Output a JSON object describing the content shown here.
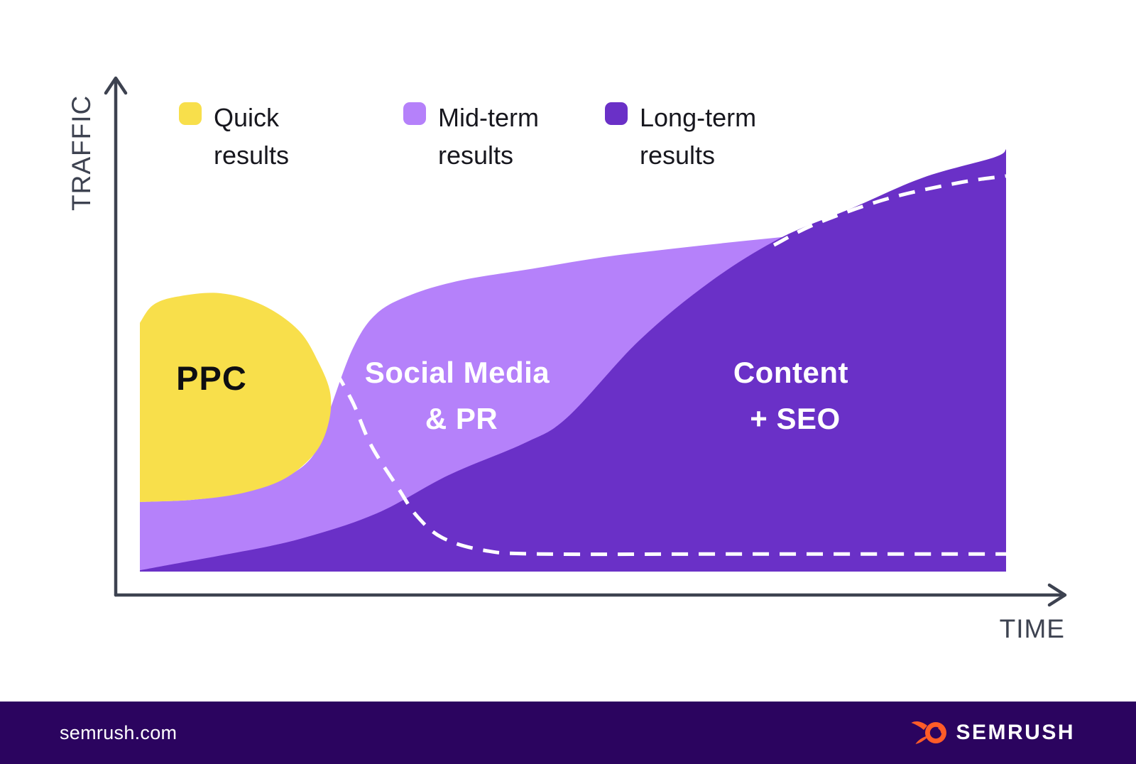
{
  "colors": {
    "axis": "#3d4250",
    "text_dark": "#17171e",
    "footer_bg": "#2b045f",
    "logo_orange": "#ff5c28",
    "white": "#ffffff"
  },
  "chart_data": {
    "type": "area",
    "title": "",
    "xlabel": "TIME",
    "ylabel": "TRAFFIC",
    "x_range": [
      0,
      100
    ],
    "y_range": [
      0,
      100
    ],
    "grid": false,
    "legend": {
      "position": "top",
      "items": [
        {
          "id": "quick-results",
          "label": "Quick results",
          "color": "#f8df4b"
        },
        {
          "id": "mid-term-results",
          "label": "Mid-term results",
          "color": "#b581fa"
        },
        {
          "id": "long-term-results",
          "label": "Long-term results",
          "color": "#6a30c7"
        }
      ]
    },
    "series": [
      {
        "id": "ppc",
        "name": "PPC",
        "label": "PPC",
        "result_type": "Quick results",
        "color": "#f8df4b",
        "shape": "blob",
        "points": [
          [
            0,
            57.9
          ],
          [
            1.5,
            62
          ],
          [
            4.3,
            64
          ],
          [
            9.3,
            64.8
          ],
          [
            14.2,
            62
          ],
          [
            18.3,
            56.2
          ],
          [
            20.6,
            48.8
          ],
          [
            22,
            41.3
          ],
          [
            21.7,
            33.9
          ],
          [
            20.1,
            27.3
          ],
          [
            16.6,
            21.5
          ],
          [
            11.7,
            18.2
          ],
          [
            6,
            16.7
          ],
          [
            0,
            16.2
          ]
        ]
      },
      {
        "id": "social-media-pr",
        "name": "Social Media & PR",
        "label_lines": [
          "Social Media",
          "& PR"
        ],
        "result_type": "Mid-term results",
        "color": "#b581fa",
        "shape": "area",
        "points": [
          [
            0,
            16.2
          ],
          [
            6,
            16.7
          ],
          [
            11.7,
            18.3
          ],
          [
            16.6,
            21.7
          ],
          [
            20.1,
            27.3
          ],
          [
            22,
            38
          ],
          [
            24.6,
            52
          ],
          [
            27.3,
            60
          ],
          [
            31.4,
            64.5
          ],
          [
            37.1,
            67.8
          ],
          [
            45.3,
            70.5
          ],
          [
            53.5,
            73.2
          ],
          [
            61.7,
            75.2
          ],
          [
            69.9,
            77
          ],
          [
            78.1,
            78.6
          ],
          [
            86.3,
            79.7
          ],
          [
            100,
            80.9
          ]
        ]
      },
      {
        "id": "content-seo",
        "name": "Content + SEO",
        "label_lines": [
          "Content",
          "+ SEO"
        ],
        "result_type": "Long-term results",
        "color": "#6a30c7",
        "shape": "area",
        "points": [
          [
            0,
            0.3
          ],
          [
            4,
            1.8
          ],
          [
            10,
            4
          ],
          [
            18.3,
            7.5
          ],
          [
            27.3,
            13.5
          ],
          [
            35.7,
            22.5
          ],
          [
            44.5,
            30
          ],
          [
            49.4,
            36
          ],
          [
            57.6,
            53.7
          ],
          [
            65.8,
            67.4
          ],
          [
            74,
            77.7
          ],
          [
            82.2,
            84.6
          ],
          [
            90.4,
            91.7
          ],
          [
            98.6,
            96.4
          ],
          [
            100,
            98.3
          ]
        ]
      }
    ],
    "guides": [
      {
        "id": "ppc-decline-dashed",
        "style": "dashed",
        "color": "#ffffff",
        "points": [
          [
            22.6,
            46.6
          ],
          [
            24.6,
            39.3
          ],
          [
            26.7,
            29.4
          ],
          [
            29.8,
            19.5
          ],
          [
            32,
            12.9
          ],
          [
            34.9,
            7.9
          ],
          [
            39.6,
            5
          ],
          [
            46.1,
            4.1
          ],
          [
            70,
            4.1
          ],
          [
            100,
            4.1
          ]
        ]
      },
      {
        "id": "seo-growth-dashed",
        "style": "dashed",
        "color": "#ffffff",
        "points": [
          [
            73.2,
            76
          ],
          [
            78.1,
            81
          ],
          [
            86.3,
            86.8
          ],
          [
            94.5,
            90.5
          ],
          [
            100,
            92.1
          ]
        ]
      }
    ]
  },
  "footer": {
    "site": "semrush.com",
    "brand": "SEMRUSH"
  }
}
